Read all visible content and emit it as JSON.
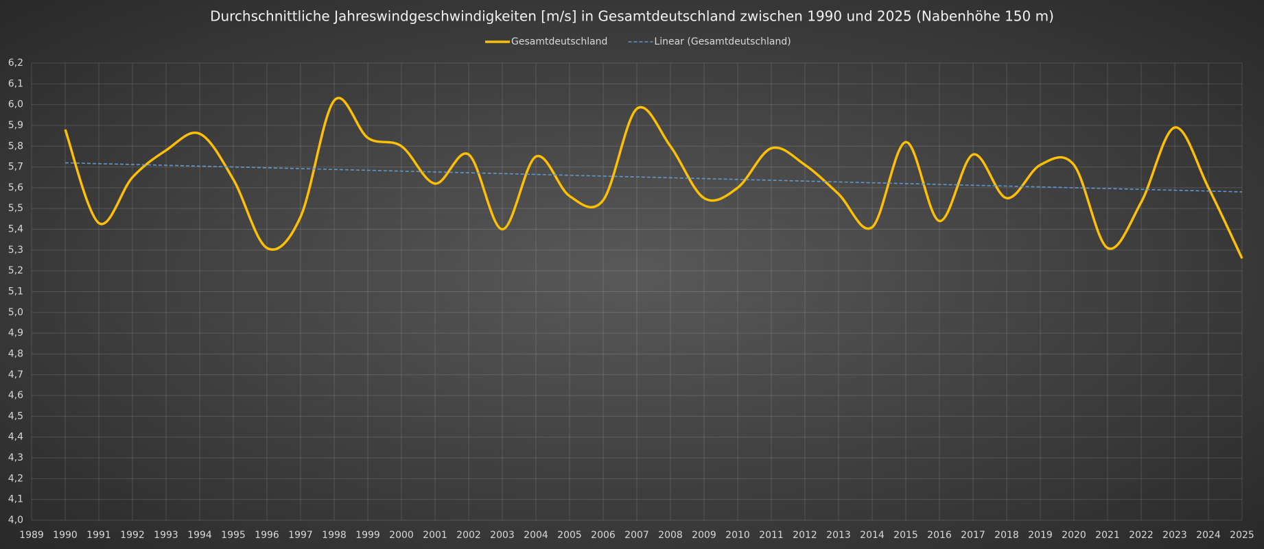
{
  "chart_data": {
    "type": "line",
    "title": "Durchschnittliche Jahreswindgeschwindigkeiten [m/s] in Gesamtdeutschland zwischen 1990 und 2025 (Nabenhöhe 150 m)",
    "x": [
      1990,
      1991,
      1992,
      1993,
      1994,
      1995,
      1996,
      1997,
      1998,
      1999,
      2000,
      2001,
      2002,
      2003,
      2004,
      2005,
      2006,
      2007,
      2008,
      2009,
      2010,
      2011,
      2012,
      2013,
      2014,
      2015,
      2016,
      2017,
      2018,
      2019,
      2020,
      2021,
      2022,
      2023,
      2024,
      2025
    ],
    "series": [
      {
        "name": "Gesamtdeutschland",
        "color": "#ffc000",
        "smooth": true,
        "values": [
          5.88,
          5.43,
          5.65,
          5.78,
          5.86,
          5.64,
          5.31,
          5.46,
          6.02,
          5.84,
          5.8,
          5.62,
          5.76,
          5.4,
          5.75,
          5.56,
          5.54,
          5.98,
          5.8,
          5.55,
          5.6,
          5.79,
          5.71,
          5.57,
          5.41,
          5.82,
          5.44,
          5.76,
          5.55,
          5.71,
          5.71,
          5.31,
          5.53,
          5.89,
          5.6,
          5.26
        ]
      },
      {
        "name": "Linear (Gesamtdeutschland)",
        "color": "#5b9bd5",
        "dashed": true,
        "x": [
          1990,
          2025
        ],
        "values": [
          5.72,
          5.58
        ]
      }
    ],
    "xlim": [
      1989,
      2025
    ],
    "xticks": [
      1989,
      1990,
      1991,
      1992,
      1993,
      1994,
      1995,
      1996,
      1997,
      1998,
      1999,
      2000,
      2001,
      2002,
      2003,
      2004,
      2005,
      2006,
      2007,
      2008,
      2009,
      2010,
      2011,
      2012,
      2013,
      2014,
      2015,
      2016,
      2017,
      2018,
      2019,
      2020,
      2021,
      2022,
      2023,
      2024,
      2025
    ],
    "ylim": [
      4.0,
      6.2
    ],
    "yticks": [
      {
        "value": 4.0,
        "label": "4,0"
      },
      {
        "value": 4.1,
        "label": "4,1"
      },
      {
        "value": 4.2,
        "label": "4,2"
      },
      {
        "value": 4.3,
        "label": "4,3"
      },
      {
        "value": 4.4,
        "label": "4,4"
      },
      {
        "value": 4.5,
        "label": "4,5"
      },
      {
        "value": 4.6,
        "label": "4,6"
      },
      {
        "value": 4.7,
        "label": "4,7"
      },
      {
        "value": 4.8,
        "label": "4,8"
      },
      {
        "value": 4.9,
        "label": "4,9"
      },
      {
        "value": 5.0,
        "label": "5,0"
      },
      {
        "value": 5.1,
        "label": "5,1"
      },
      {
        "value": 5.2,
        "label": "5,2"
      },
      {
        "value": 5.3,
        "label": "5,3"
      },
      {
        "value": 5.4,
        "label": "5,4"
      },
      {
        "value": 5.5,
        "label": "5,5"
      },
      {
        "value": 5.6,
        "label": "5,6"
      },
      {
        "value": 5.7,
        "label": "5,7"
      },
      {
        "value": 5.8,
        "label": "5,8"
      },
      {
        "value": 5.9,
        "label": "5,9"
      },
      {
        "value": 6.0,
        "label": "6,0"
      },
      {
        "value": 6.1,
        "label": "6,1"
      },
      {
        "value": 6.2,
        "label": "6,2"
      }
    ],
    "grid": true,
    "legend": "top"
  }
}
